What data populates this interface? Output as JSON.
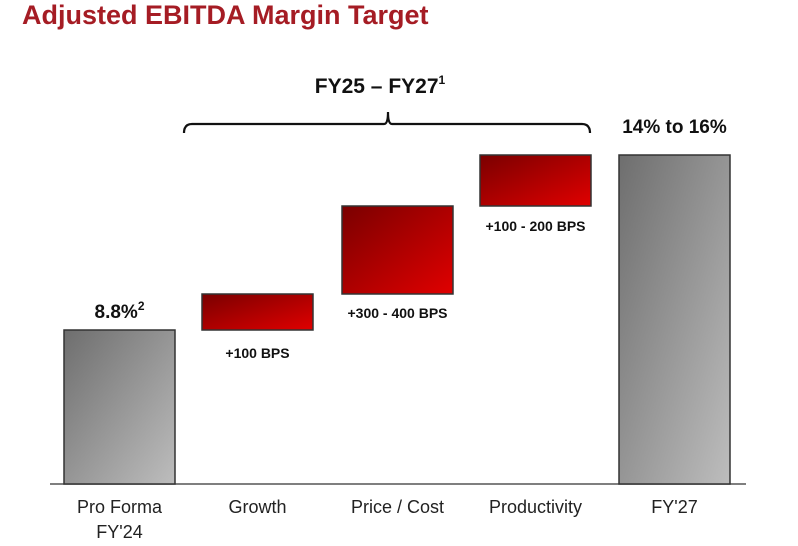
{
  "chart_data": {
    "type": "bar",
    "subtype": "waterfall",
    "title": "Adjusted EBITDA Margin Target",
    "bracket_label": "FY25 – FY27",
    "bracket_label_sup": "1",
    "categories": [
      "Pro Forma FY'24",
      "Growth",
      "Price / Cost",
      "Productivity",
      "FY'27"
    ],
    "category_lines": [
      [
        "Pro Forma",
        "FY'24"
      ],
      [
        "Growth"
      ],
      [
        "Price / Cost"
      ],
      [
        "Productivity"
      ],
      [
        "FY'27"
      ]
    ],
    "values_bps_low": [
      880,
      100,
      300,
      100,
      1400
    ],
    "values_bps_high": [
      880,
      100,
      400,
      200,
      1600
    ],
    "data_labels": [
      "8.8%",
      "+100 BPS",
      "+300 - 400 BPS",
      "+100 - 200 BPS",
      "14% to 16%"
    ],
    "data_label_sup": [
      "2",
      "",
      "",
      "",
      ""
    ],
    "kinds": [
      "total",
      "increment",
      "increment",
      "increment",
      "total"
    ],
    "colors": {
      "title": "#a51c24",
      "total_dark": "#6e6e6e",
      "total_light": "#bdbdbd",
      "inc_dark": "#7a0000",
      "inc_light": "#e00000"
    }
  }
}
